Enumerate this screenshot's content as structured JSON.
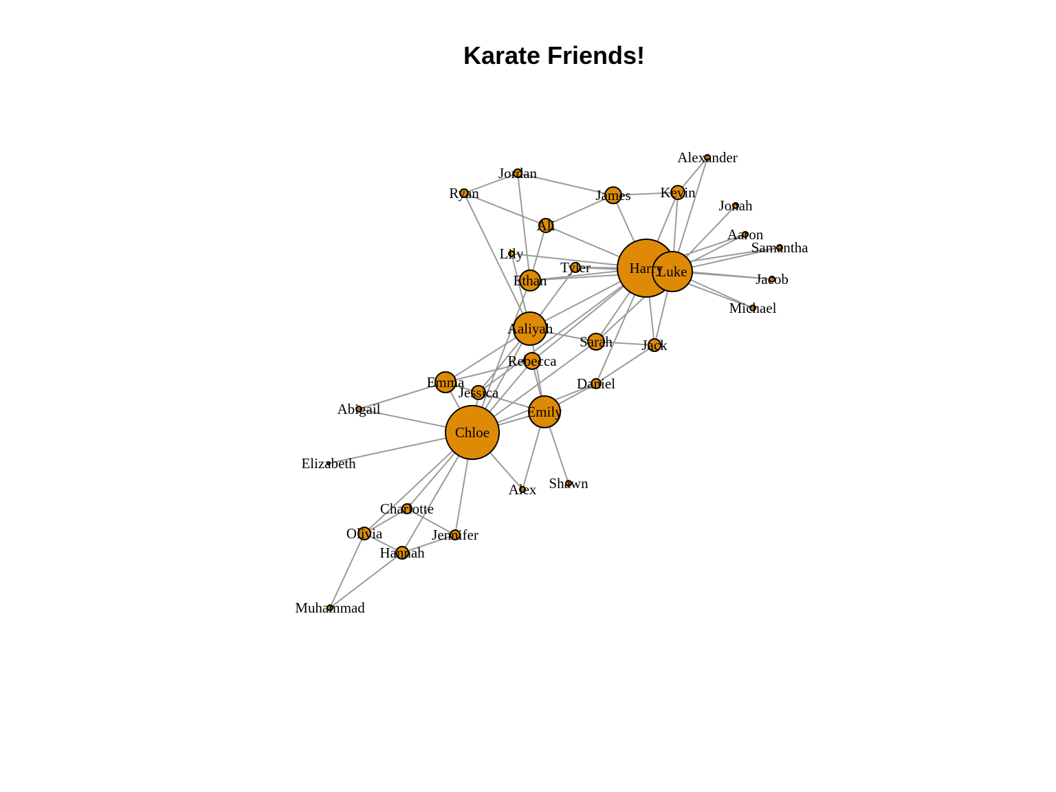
{
  "title": "Karate Friends!",
  "colors": {
    "node_fill": "#df8a06",
    "node_stroke": "#000000",
    "edge": "#9a9a9a",
    "background": "#ffffff"
  },
  "nodes": [
    {
      "id": "Harry",
      "label": "Harry"
    },
    {
      "id": "Luke",
      "label": "Luke"
    },
    {
      "id": "Chloe",
      "label": "Chloe"
    },
    {
      "id": "Emily",
      "label": "Emily"
    },
    {
      "id": "Aaliyah",
      "label": "Aaliyah"
    },
    {
      "id": "Emma",
      "label": "Emma"
    },
    {
      "id": "Ethan",
      "label": "Ethan"
    },
    {
      "id": "James",
      "label": "James"
    },
    {
      "id": "Sarah",
      "label": "Sarah"
    },
    {
      "id": "Rebecca",
      "label": "Rebecca"
    },
    {
      "id": "Kevin",
      "label": "Kevin"
    },
    {
      "id": "Ali",
      "label": "Ali"
    },
    {
      "id": "Jessica",
      "label": "Jessica"
    },
    {
      "id": "Hannah",
      "label": "Hannah"
    },
    {
      "id": "Olivia",
      "label": "Olivia"
    },
    {
      "id": "Jack",
      "label": "Jack"
    },
    {
      "id": "Daniel",
      "label": "Daniel"
    },
    {
      "id": "Charlotte",
      "label": "Charlotte"
    },
    {
      "id": "Jennifer",
      "label": "Jennifer"
    },
    {
      "id": "Tyler",
      "label": "Tyler"
    },
    {
      "id": "Jordan",
      "label": "Jordan"
    },
    {
      "id": "Ryan",
      "label": "Ryan"
    },
    {
      "id": "Lily",
      "label": "Lily"
    },
    {
      "id": "Alexander",
      "label": "Alexander"
    },
    {
      "id": "Jonah",
      "label": "Jonah"
    },
    {
      "id": "Aaron",
      "label": "Aaron"
    },
    {
      "id": "Samantha",
      "label": "Samantha"
    },
    {
      "id": "Jacob",
      "label": "Jacob"
    },
    {
      "id": "Michael",
      "label": "Michael"
    },
    {
      "id": "Abigail",
      "label": "Abigail"
    },
    {
      "id": "Elizabeth",
      "label": "Elizabeth"
    },
    {
      "id": "Alex",
      "label": "Alex"
    },
    {
      "id": "Shawn",
      "label": "Shawn"
    },
    {
      "id": "Muhammad",
      "label": "Muhammad"
    }
  ],
  "edges": [
    [
      "Harry",
      "Luke"
    ],
    [
      "Harry",
      "James"
    ],
    [
      "Harry",
      "Kevin"
    ],
    [
      "Harry",
      "Ali"
    ],
    [
      "Harry",
      "Lily"
    ],
    [
      "Harry",
      "Tyler"
    ],
    [
      "Harry",
      "Ethan"
    ],
    [
      "Harry",
      "Aaliyah"
    ],
    [
      "Harry",
      "Sarah"
    ],
    [
      "Harry",
      "Jack"
    ],
    [
      "Harry",
      "Daniel"
    ],
    [
      "Harry",
      "Rebecca"
    ],
    [
      "Harry",
      "Aaron"
    ],
    [
      "Harry",
      "Samantha"
    ],
    [
      "Harry",
      "Jacob"
    ],
    [
      "Harry",
      "Michael"
    ],
    [
      "Harry",
      "Jessica"
    ],
    [
      "Luke",
      "Alexander"
    ],
    [
      "Luke",
      "Kevin"
    ],
    [
      "Luke",
      "Jonah"
    ],
    [
      "Luke",
      "Aaron"
    ],
    [
      "Luke",
      "Samantha"
    ],
    [
      "Luke",
      "Jacob"
    ],
    [
      "Luke",
      "Michael"
    ],
    [
      "Luke",
      "Jack"
    ],
    [
      "Luke",
      "Tyler"
    ],
    [
      "Luke",
      "Ethan"
    ],
    [
      "Luke",
      "Sarah"
    ],
    [
      "Kevin",
      "Alexander"
    ],
    [
      "Kevin",
      "James"
    ],
    [
      "Jordan",
      "Ryan"
    ],
    [
      "Jordan",
      "James"
    ],
    [
      "Jordan",
      "Ethan"
    ],
    [
      "Ryan",
      "Ali"
    ],
    [
      "Ryan",
      "Aaliyah"
    ],
    [
      "Ali",
      "James"
    ],
    [
      "Ali",
      "Ethan"
    ],
    [
      "Lily",
      "Aaliyah"
    ],
    [
      "Tyler",
      "Aaliyah"
    ],
    [
      "Ethan",
      "Chloe"
    ],
    [
      "Aaliyah",
      "Emma"
    ],
    [
      "Aaliyah",
      "Sarah"
    ],
    [
      "Aaliyah",
      "Chloe"
    ],
    [
      "Aaliyah",
      "Emily"
    ],
    [
      "Aaliyah",
      "Jessica"
    ],
    [
      "Sarah",
      "Jack"
    ],
    [
      "Sarah",
      "Chloe"
    ],
    [
      "Jack",
      "Daniel"
    ],
    [
      "Rebecca",
      "Emma"
    ],
    [
      "Rebecca",
      "Emily"
    ],
    [
      "Rebecca",
      "Chloe"
    ],
    [
      "Emma",
      "Abigail"
    ],
    [
      "Emma",
      "Chloe"
    ],
    [
      "Emma",
      "Jessica"
    ],
    [
      "Jessica",
      "Emily"
    ],
    [
      "Jessica",
      "Chloe"
    ],
    [
      "Daniel",
      "Emily"
    ],
    [
      "Daniel",
      "Chloe"
    ],
    [
      "Emily",
      "Chloe"
    ],
    [
      "Emily",
      "Alex"
    ],
    [
      "Emily",
      "Shawn"
    ],
    [
      "Chloe",
      "Abigail"
    ],
    [
      "Chloe",
      "Elizabeth"
    ],
    [
      "Chloe",
      "Alex"
    ],
    [
      "Chloe",
      "Charlotte"
    ],
    [
      "Chloe",
      "Olivia"
    ],
    [
      "Chloe",
      "Hannah"
    ],
    [
      "Chloe",
      "Jennifer"
    ],
    [
      "Charlotte",
      "Olivia"
    ],
    [
      "Charlotte",
      "Jennifer"
    ],
    [
      "Olivia",
      "Hannah"
    ],
    [
      "Olivia",
      "Muhammad"
    ],
    [
      "Hannah",
      "Jennifer"
    ],
    [
      "Hannah",
      "Muhammad"
    ]
  ]
}
